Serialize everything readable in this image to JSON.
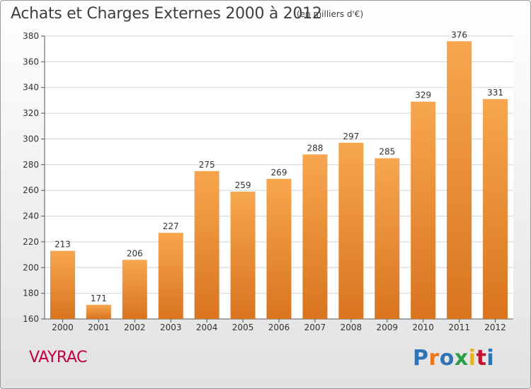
{
  "header": {
    "title": "Achats et Charges Externes 2000 à 2012",
    "subtitle": "(en milliers d'€)"
  },
  "footer": {
    "commune": "VAYRAC",
    "logo_text": "Proxiti",
    "logo_colors": [
      "#2e74b5",
      "#e8771e",
      "#2e74b5",
      "#2e9e44",
      "#e8b21e",
      "#c8102e",
      "#2e74b5"
    ]
  },
  "chart_data": {
    "type": "bar",
    "title": "Achats et Charges Externes 2000 à 2012",
    "subtitle": "(en milliers d'€)",
    "categories": [
      "2000",
      "2001",
      "2002",
      "2003",
      "2004",
      "2005",
      "2006",
      "2007",
      "2008",
      "2009",
      "2010",
      "2011",
      "2012"
    ],
    "values": [
      213,
      171,
      206,
      227,
      275,
      259,
      269,
      288,
      297,
      285,
      329,
      376,
      331
    ],
    "ylim": [
      160,
      380
    ],
    "yticks": [
      160,
      180,
      200,
      220,
      240,
      260,
      280,
      300,
      320,
      340,
      360,
      380
    ],
    "grid": true,
    "bar_color_top": "#f7a64f",
    "bar_color_bottom": "#d9741f",
    "xlabel": "",
    "ylabel": ""
  }
}
